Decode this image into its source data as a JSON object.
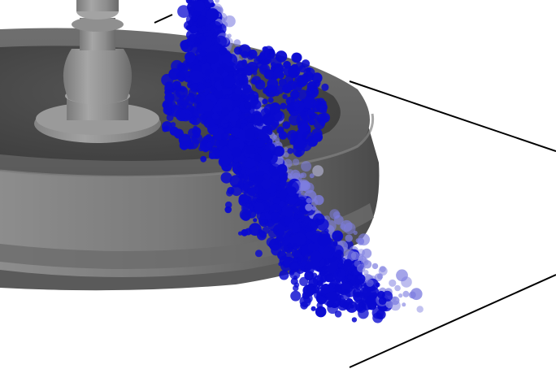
{
  "scene": {
    "subject": "fountain-particle-simulation",
    "colors": {
      "background": "#ffffff",
      "floor_outline": "#000000",
      "stone_light": "#9a9a9a",
      "stone_mid": "#7c7c7c",
      "stone_dark": "#555555",
      "stone_rim": "#6a6a6a",
      "basin_interior": "#484848",
      "particle_core": "#0a0ad0",
      "particle_fade": "#7d7de0",
      "particle_faint": "#c9c9f2"
    }
  }
}
